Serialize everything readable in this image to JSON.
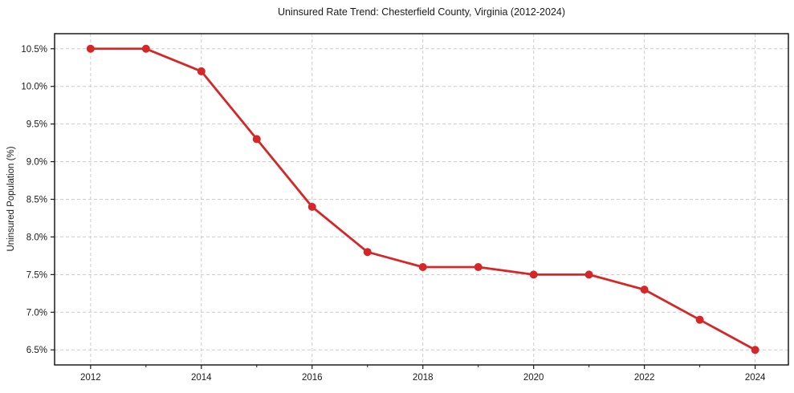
{
  "chart_data": {
    "type": "line",
    "title": "Uninsured Rate Trend: Chesterfield County, Virginia (2012-2024)",
    "xlabel": "",
    "ylabel": "Uninsured Population (%)",
    "x": [
      2012,
      2013,
      2014,
      2015,
      2016,
      2017,
      2018,
      2019,
      2020,
      2021,
      2022,
      2023,
      2024
    ],
    "y": [
      10.5,
      10.5,
      10.2,
      9.3,
      8.4,
      7.8,
      7.6,
      7.6,
      7.5,
      7.5,
      7.3,
      6.9,
      6.5
    ],
    "xlim": [
      2011.35,
      2024.6
    ],
    "ylim": [
      6.3,
      10.7
    ],
    "x_major_ticks": [
      2012,
      2014,
      2016,
      2018,
      2020,
      2022,
      2024
    ],
    "x_tick_labels": [
      "2012",
      "2014",
      "2016",
      "2018",
      "2020",
      "2022",
      "2024"
    ],
    "x_minor_ticks": [
      2013,
      2015,
      2017,
      2019,
      2021,
      2023
    ],
    "y_ticks": [
      6.5,
      7.0,
      7.5,
      8.0,
      8.5,
      9.0,
      9.5,
      10.0,
      10.5
    ],
    "y_tick_labels": [
      "6.5%",
      "7.0%",
      "7.5%",
      "8.0%",
      "8.5%",
      "9.0%",
      "9.5%",
      "10.0%",
      "10.5%"
    ],
    "grid": true,
    "legend": "none",
    "line_color": "#d62728",
    "marker": "circle",
    "grid_color": "#cccccc",
    "axis_color": "#1a1a1a",
    "text_color": "#1a1a1a"
  }
}
